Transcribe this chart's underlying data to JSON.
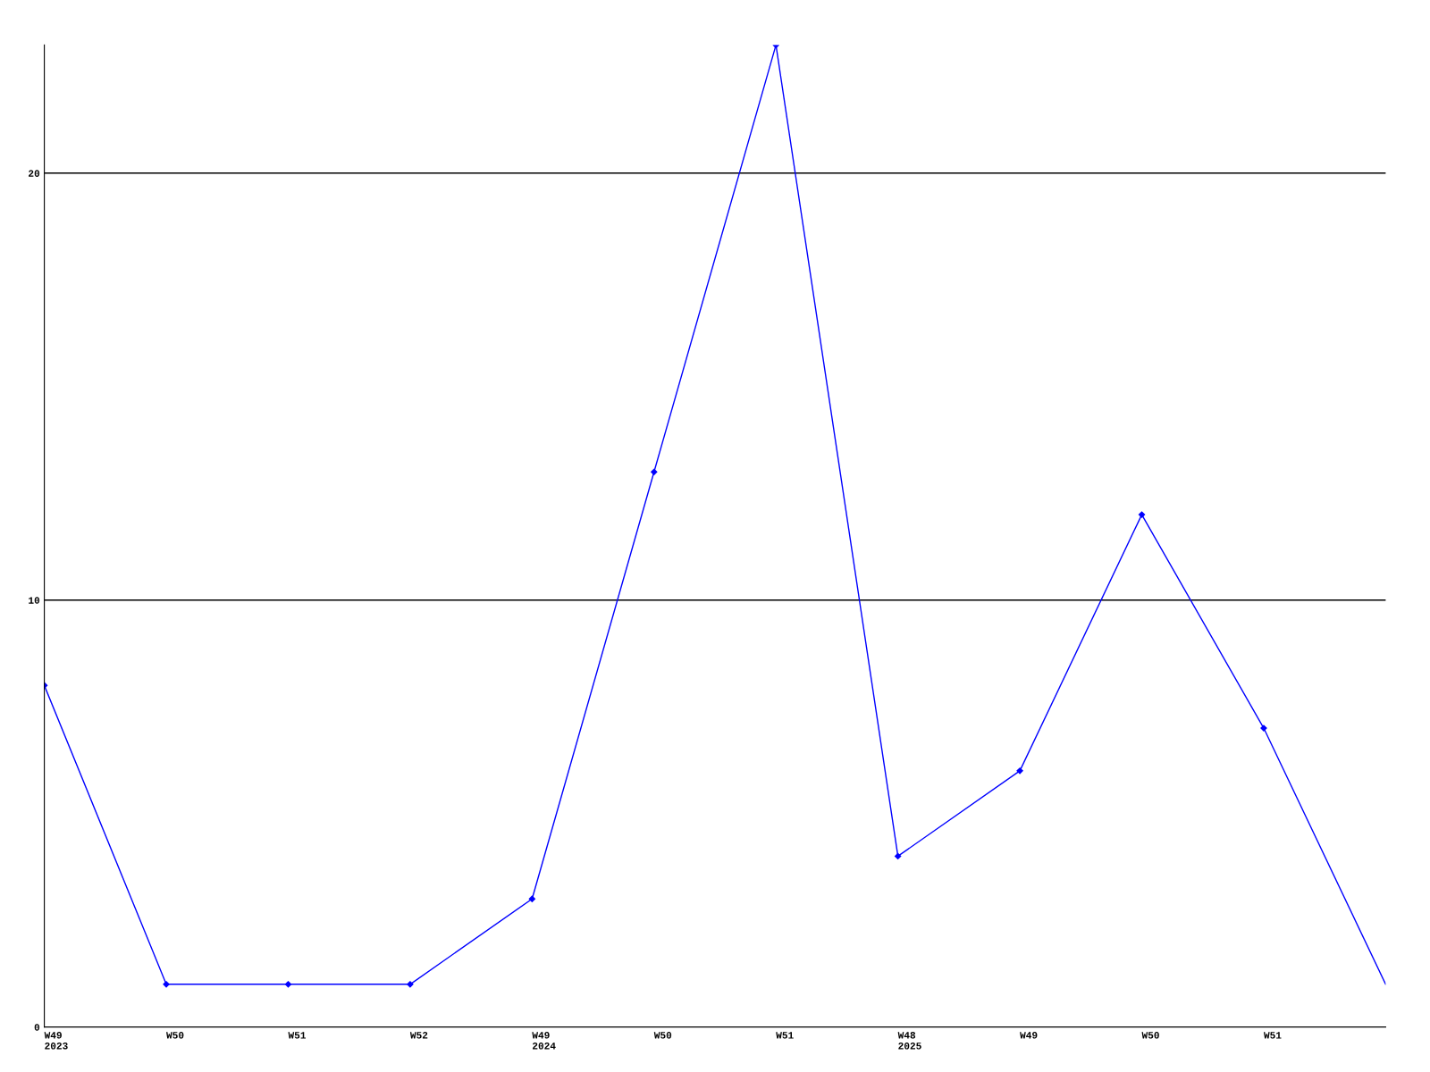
{
  "chart_data": {
    "type": "line",
    "categories": [
      "W49\n2023",
      "W50",
      "W51",
      "W52",
      "W49\n2024",
      "W50",
      "W51",
      "W48\n2025",
      "W49",
      "W50",
      "W51",
      null
    ],
    "series": [
      {
        "color": "#0000ff",
        "values": [
          8,
          1,
          1,
          1,
          3,
          13,
          23,
          4,
          6,
          12,
          7,
          1
        ]
      }
    ],
    "ylim": [
      0,
      23
    ],
    "yticks": [
      0,
      10,
      20
    ],
    "grid": "y",
    "marker": "diamond",
    "line_style": "solid"
  }
}
